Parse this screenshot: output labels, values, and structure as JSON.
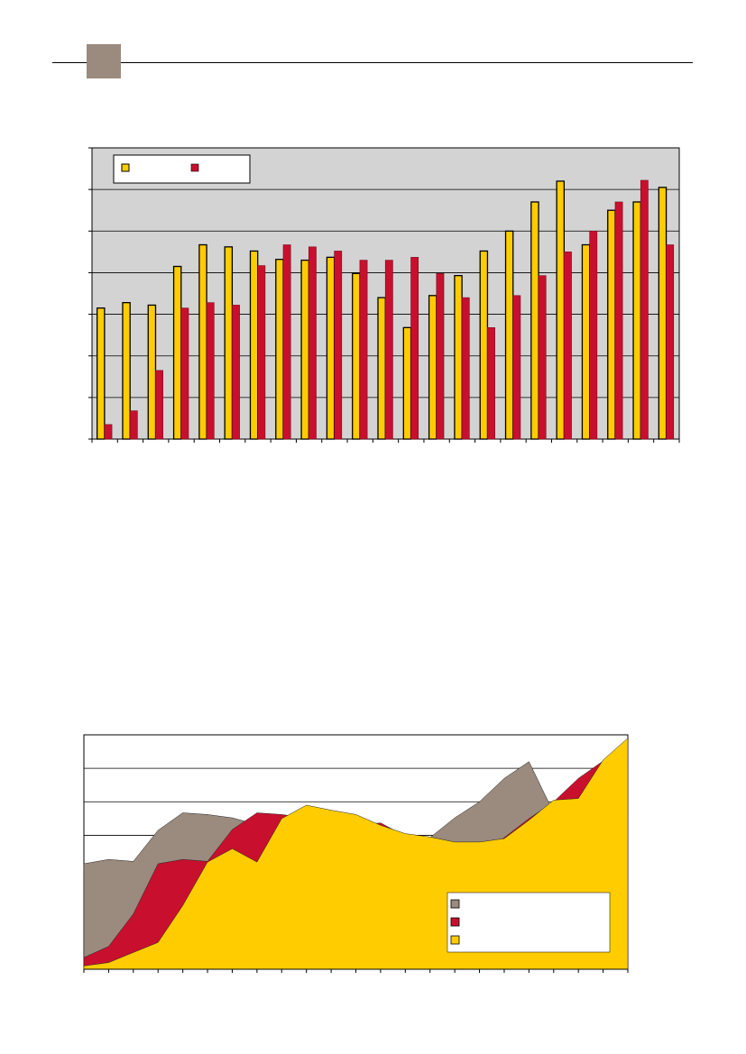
{
  "page": {
    "accent_square_color": "#9b8a7e"
  },
  "colors": {
    "gray": "#9b8a7e",
    "red": "#c8102e",
    "yellow": "#ffcc00",
    "plot_bg": "#d3d3d3"
  },
  "chart_data": [
    {
      "type": "bar",
      "title": "",
      "xlabel": "",
      "ylabel": "",
      "ylim": [
        0,
        7
      ],
      "grid": true,
      "legend": "top-left",
      "series": [
        {
          "values": [
            3.15,
            3.28,
            3.22,
            4.15,
            4.67,
            4.62,
            4.52,
            4.32,
            4.3,
            4.37,
            3.98,
            3.4,
            2.68,
            3.45,
            3.93,
            4.52,
            5.0,
            5.7,
            6.2,
            4.67,
            5.5,
            5.7,
            6.05
          ]
        },
        {
          "values": [
            0.35,
            0.68,
            1.65,
            3.15,
            3.28,
            3.22,
            4.17,
            4.67,
            4.62,
            4.52,
            4.3,
            4.3,
            4.37,
            3.98,
            3.4,
            2.68,
            3.45,
            3.93,
            4.5,
            5.0,
            5.7,
            6.22,
            4.67
          ]
        }
      ]
    },
    {
      "type": "area",
      "title": "",
      "xlabel": "",
      "ylabel": "",
      "ylim": [
        0,
        7
      ],
      "grid": true,
      "legend": "bottom-right",
      "series": [
        {
          "values": [
            3.15,
            3.28,
            3.22,
            4.15,
            4.67,
            4.62,
            4.52,
            4.32,
            4.3,
            4.37,
            3.98,
            3.4,
            2.68,
            3.45,
            3.93,
            4.52,
            5.0,
            5.7,
            6.2,
            4.67,
            5.5,
            5.7,
            6.05
          ]
        },
        {
          "values": [
            0.35,
            0.68,
            1.65,
            3.15,
            3.28,
            3.22,
            4.17,
            4.67,
            4.62,
            4.52,
            4.3,
            4.3,
            4.37,
            3.98,
            3.4,
            2.68,
            3.45,
            3.93,
            4.5,
            5.0,
            5.7,
            6.22,
            4.67
          ]
        },
        {
          "values": [
            0.1,
            0.2,
            0.5,
            0.8,
            1.9,
            3.2,
            3.6,
            3.2,
            4.5,
            4.9,
            4.75,
            4.62,
            4.3,
            4.05,
            3.95,
            3.8,
            3.8,
            3.9,
            4.45,
            5.05,
            5.1,
            6.25,
            6.9
          ]
        }
      ]
    }
  ]
}
